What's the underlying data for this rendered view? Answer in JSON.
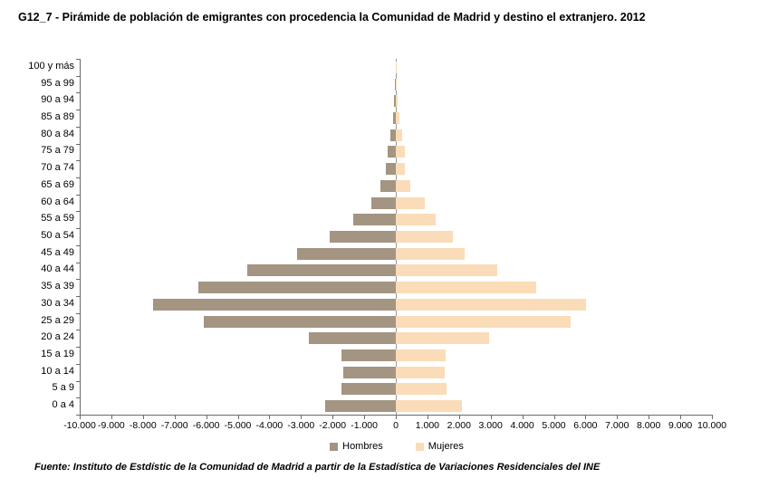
{
  "title": "G12_7 - Pirámide de población de emigrantes con procedencia la Comunidad de Madrid y destino el extranjero. 2012",
  "footer": "Fuente: Instituto de Estdístic de la Comunidad de Madrid a partir de la Estadística de Variaciones Residenciales del INE",
  "legend": {
    "hombres_label": "Hombres",
    "mujeres_label": "Mujeres"
  },
  "colors": {
    "hombres": "#A39582",
    "mujeres": "#FADCB8",
    "axis": "#6b6b6b"
  },
  "chart_data": {
    "type": "bar",
    "variant": "population-pyramid",
    "orientation": "horizontal",
    "title": "G12_7 - Pirámide de población de emigrantes con procedencia la Comunidad de Madrid y destino el extranjero. 2012",
    "categories": [
      "100 y más",
      "95 a 99",
      "90 a 94",
      "85 a 89",
      "80 a 84",
      "75 a 79",
      "70 a 74",
      "65 a 69",
      "60 a 64",
      "55 a 59",
      "50 a 54",
      "45 a 49",
      "40 a 44",
      "35 a 39",
      "30 a 34",
      "25 a 29",
      "20 a 24",
      "15 a 19",
      "10 a 14",
      "5 a 9",
      "0 a 4"
    ],
    "series": [
      {
        "name": "Hombres",
        "side": "left",
        "values": [
          5,
          20,
          50,
          100,
          170,
          250,
          320,
          490,
          770,
          1350,
          2090,
          3120,
          4700,
          6250,
          7680,
          6070,
          2750,
          1720,
          1660,
          1720,
          2230
        ]
      },
      {
        "name": "Mujeres",
        "side": "right",
        "values": [
          5,
          25,
          60,
          120,
          200,
          280,
          280,
          460,
          920,
          1260,
          1810,
          2180,
          3210,
          4440,
          6030,
          5530,
          2950,
          1580,
          1550,
          1600,
          2090
        ]
      }
    ],
    "xlim": [
      -10000,
      10000
    ],
    "x_tick_step": 1000,
    "x_tick_labels": [
      "-10.000",
      "-9.000",
      "-8.000",
      "-7.000",
      "-6.000",
      "-5.000",
      "-4.000",
      "-3.000",
      "-2.000",
      "-1.000",
      "0",
      "1.000",
      "2.000",
      "3.000",
      "4.000",
      "5.000",
      "6.000",
      "7.000",
      "8.000",
      "9.000",
      "10.000"
    ],
    "grid": false,
    "legend_position": "bottom"
  }
}
